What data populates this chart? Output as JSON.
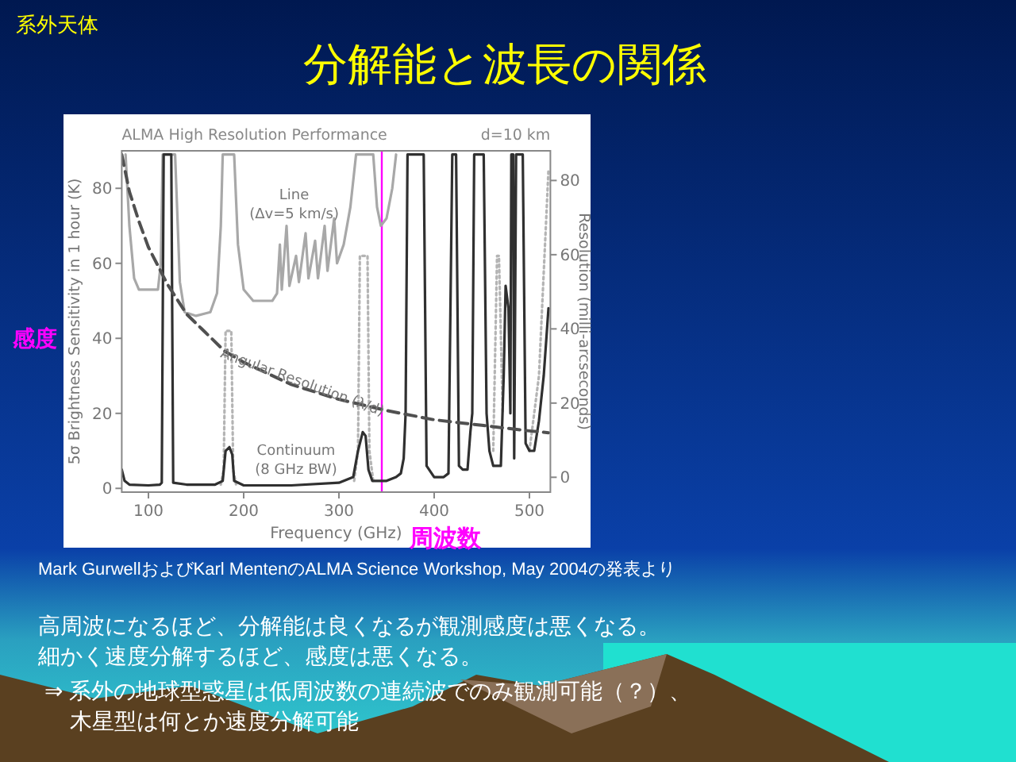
{
  "chart_data": {
    "type": "line",
    "title": "分解能と波長の関係",
    "subtitle": "ALMA High Resolution Performance",
    "xlabel": "Frequency (GHz)",
    "ylabel": "5σ Brightness Sensitivity in 1 hour (K)",
    "y2label": "Resolution (milli-arcseconds)",
    "xlim": [
      72,
      522
    ],
    "xticks": [
      100,
      200,
      300,
      400,
      500
    ],
    "ylim": [
      -1,
      90
    ],
    "yticks": [
      0,
      20,
      40,
      60,
      80
    ],
    "y2lim": [
      -4,
      88
    ],
    "y2ticks": [
      0,
      20,
      40,
      60,
      80
    ],
    "marker": "none",
    "series": [
      {
        "name": "Line (Δv=5 km/s)",
        "color": "#a8a8a8",
        "line_style": "solid",
        "x": [
          76,
          80,
          85,
          90,
          110,
          113,
          115,
          128,
          133,
          138,
          150,
          165,
          172,
          176,
          178,
          190,
          194,
          200,
          210,
          230,
          235,
          238,
          240,
          245,
          248,
          255,
          258,
          265,
          268,
          275,
          278,
          285,
          288,
          295,
          298,
          305,
          312,
          318,
          336,
          340,
          344,
          350,
          356,
          360
        ],
        "values": [
          89,
          70,
          56,
          53,
          53,
          60,
          89,
          89,
          55,
          47,
          46,
          47,
          52,
          70,
          89,
          89,
          65,
          53,
          50,
          50,
          52,
          65,
          53,
          70,
          54,
          62,
          55,
          68,
          56,
          66,
          56,
          70,
          58,
          72,
          60,
          65,
          75,
          89,
          89,
          75,
          70,
          72,
          80,
          89
        ]
      },
      {
        "color": "#b4b4b4",
        "line_style": "dotted",
        "x": [
          176,
          179,
          181,
          187,
          189,
          192,
          200,
          316,
          320,
          322,
          330,
          332,
          336,
          345,
          462,
          466,
          468,
          472,
          480,
          500,
          510,
          520
        ],
        "values": [
          1,
          5,
          42,
          42,
          5,
          1,
          null,
          2,
          10,
          62,
          62,
          10,
          2,
          null,
          10,
          62,
          62,
          20,
          null,
          10,
          30,
          85
        ]
      },
      {
        "name": "Continuum (8 GHz BW)",
        "color": "#303030",
        "line_style": "solid",
        "x": [
          72,
          75,
          80,
          100,
          112,
          114,
          116,
          124,
          126,
          140,
          170,
          178,
          181,
          185,
          188,
          190,
          200,
          250,
          300,
          315,
          320,
          325,
          328,
          331,
          335,
          350,
          360,
          365,
          368,
          370,
          372,
          389,
          392,
          400,
          410,
          415,
          419,
          423,
          426,
          430,
          435,
          438,
          440,
          442,
          452,
          455,
          458,
          462,
          470,
          473,
          475,
          478,
          480,
          481,
          483,
          484,
          486,
          493,
          496,
          500,
          505,
          510,
          515,
          520
        ],
        "values": [
          5,
          2,
          1,
          0.8,
          1,
          1.5,
          89,
          89,
          1.5,
          1,
          1,
          2,
          10,
          11,
          9,
          2,
          0.8,
          0.8,
          1.5,
          3,
          10,
          15,
          14,
          5,
          2,
          2,
          3,
          4,
          8,
          20,
          89,
          89,
          6,
          3,
          3,
          4,
          89,
          89,
          6,
          5,
          5,
          15,
          20,
          89,
          89,
          20,
          10,
          6,
          6,
          30,
          54,
          48,
          20,
          89,
          89,
          8,
          89,
          89,
          12,
          10,
          10,
          18,
          30,
          48
        ]
      },
      {
        "name": "Angular Resolution (λ/d)",
        "color": "#505050",
        "line_style": "dashed",
        "axis": "y2",
        "x": [
          72,
          80,
          90,
          100,
          120,
          140,
          160,
          180,
          200,
          250,
          300,
          350,
          400,
          450,
          500,
          520
        ],
        "values": [
          87,
          77,
          69,
          62,
          52,
          44,
          39,
          34,
          31,
          25,
          21,
          18,
          15.5,
          14,
          12.5,
          12
        ]
      }
    ],
    "ref_lines": [
      {
        "axis": "x",
        "value": 345,
        "color": "#ff00ff",
        "line_style": "solid"
      }
    ],
    "annotations": [
      "系外天体",
      "d=10 km",
      "感度",
      "周波数",
      "Mark GurwellおよびKarl MentenのALMA Science Workshop, May 2004の発表より",
      "高周波になるほど、分解能は良くなるが観測感度は悪くなる。",
      "細かく速度分解するほど、感度は悪くなる。",
      "⇒ 系外の地球型惑星は低周波数の連続波でのみ観測可能（？）、",
      "木星型は何とか速度分解可能"
    ]
  }
}
